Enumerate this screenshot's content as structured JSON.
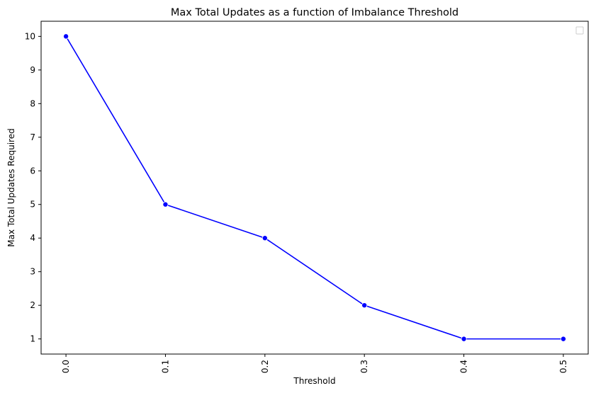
{
  "chart_data": {
    "type": "line",
    "title": "Max Total Updates as a function of Imbalance Threshold",
    "xlabel": "Threshold",
    "ylabel": "Max Total Updates Required",
    "x": [
      0.0,
      0.1,
      0.2,
      0.3,
      0.4,
      0.5
    ],
    "x_tick_labels": [
      "0.0",
      "0.1",
      "0.2",
      "0.3",
      "0.4",
      "0.5"
    ],
    "y_ticks": [
      1,
      2,
      3,
      4,
      5,
      6,
      7,
      8,
      9,
      10
    ],
    "series": [
      {
        "values": [
          10,
          5,
          4,
          2,
          1,
          1
        ],
        "color": "#0000ff",
        "marker": "circle"
      }
    ],
    "xlim": [
      -0.025,
      0.525
    ],
    "ylim": [
      0.55,
      10.45
    ],
    "grid": false,
    "legend": {
      "position": "top-right",
      "entries": []
    },
    "x_tick_rotation": "vertical"
  }
}
